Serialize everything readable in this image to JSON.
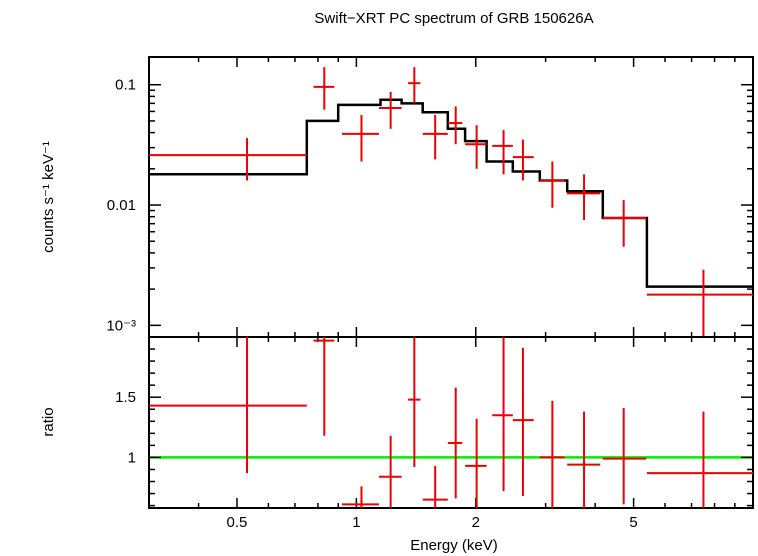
{
  "chart_data": [
    {
      "type": "scatter",
      "panel": "spectrum",
      "title": "Swift−XRT PC spectrum of GRB 150626A",
      "xlabel": "Energy (keV)",
      "ylabel": "counts s⁻¹ keV⁻¹",
      "xscale": "log",
      "yscale": "log",
      "xlim": [
        0.3,
        10.0
      ],
      "ylim": [
        0.0008,
        0.17
      ],
      "y_ticks": [
        {
          "value": 0.1,
          "label": "0.1"
        },
        {
          "value": 0.01,
          "label": "0.01"
        },
        {
          "value": 0.001,
          "label": "10⁻³"
        }
      ],
      "colors": {
        "data": "#ee0000",
        "model": "#000000"
      },
      "series": [
        {
          "name": "data",
          "points": [
            {
              "x": 0.53,
              "xlo": 0.3,
              "xhi": 0.75,
              "y": 0.026,
              "ylo": 0.016,
              "yhi": 0.036
            },
            {
              "x": 0.83,
              "xlo": 0.78,
              "xhi": 0.88,
              "y": 0.096,
              "ylo": 0.062,
              "yhi": 0.14
            },
            {
              "x": 1.03,
              "xlo": 0.92,
              "xhi": 1.14,
              "y": 0.039,
              "ylo": 0.023,
              "yhi": 0.056
            },
            {
              "x": 1.22,
              "xlo": 1.14,
              "xhi": 1.3,
              "y": 0.064,
              "ylo": 0.043,
              "yhi": 0.087
            },
            {
              "x": 1.4,
              "xlo": 1.35,
              "xhi": 1.45,
              "y": 0.103,
              "ylo": 0.07,
              "yhi": 0.14
            },
            {
              "x": 1.58,
              "xlo": 1.47,
              "xhi": 1.7,
              "y": 0.039,
              "ylo": 0.024,
              "yhi": 0.056
            },
            {
              "x": 1.78,
              "xlo": 1.7,
              "xhi": 1.85,
              "y": 0.048,
              "ylo": 0.032,
              "yhi": 0.066
            },
            {
              "x": 2.01,
              "xlo": 1.88,
              "xhi": 2.13,
              "y": 0.032,
              "ylo": 0.02,
              "yhi": 0.046
            },
            {
              "x": 2.35,
              "xlo": 2.2,
              "xhi": 2.48,
              "y": 0.031,
              "ylo": 0.018,
              "yhi": 0.042
            },
            {
              "x": 2.63,
              "xlo": 2.48,
              "xhi": 2.8,
              "y": 0.025,
              "ylo": 0.016,
              "yhi": 0.035
            },
            {
              "x": 3.12,
              "xlo": 2.9,
              "xhi": 3.35,
              "y": 0.016,
              "ylo": 0.0095,
              "yhi": 0.023
            },
            {
              "x": 3.75,
              "xlo": 3.4,
              "xhi": 4.12,
              "y": 0.0125,
              "ylo": 0.0075,
              "yhi": 0.018
            },
            {
              "x": 4.72,
              "xlo": 4.18,
              "xhi": 5.38,
              "y": 0.0078,
              "ylo": 0.0045,
              "yhi": 0.011
            },
            {
              "x": 7.5,
              "xlo": 5.4,
              "xhi": 10.0,
              "y": 0.0018,
              "ylo": 0.00078,
              "yhi": 0.0029
            }
          ]
        },
        {
          "name": "model",
          "style": "step",
          "steps": [
            {
              "xlo": 0.3,
              "xhi": 0.75,
              "y": 0.018
            },
            {
              "xlo": 0.75,
              "xhi": 0.9,
              "y": 0.05
            },
            {
              "xlo": 0.9,
              "xhi": 1.15,
              "y": 0.068
            },
            {
              "xlo": 1.15,
              "xhi": 1.3,
              "y": 0.075
            },
            {
              "xlo": 1.3,
              "xhi": 1.47,
              "y": 0.07
            },
            {
              "xlo": 1.47,
              "xhi": 1.7,
              "y": 0.059
            },
            {
              "xlo": 1.7,
              "xhi": 1.88,
              "y": 0.043
            },
            {
              "xlo": 1.88,
              "xhi": 2.13,
              "y": 0.034
            },
            {
              "xlo": 2.13,
              "xhi": 2.48,
              "y": 0.023
            },
            {
              "xlo": 2.48,
              "xhi": 2.9,
              "y": 0.019
            },
            {
              "xlo": 2.9,
              "xhi": 3.4,
              "y": 0.016
            },
            {
              "xlo": 3.4,
              "xhi": 4.18,
              "y": 0.013
            },
            {
              "xlo": 4.18,
              "xhi": 5.4,
              "y": 0.0078
            },
            {
              "xlo": 5.4,
              "xhi": 10.0,
              "y": 0.0021
            }
          ]
        }
      ]
    },
    {
      "type": "scatter",
      "panel": "ratio",
      "xlabel": "Energy (keV)",
      "ylabel": "ratio",
      "xscale": "log",
      "yscale": "linear",
      "xlim": [
        0.3,
        10.0
      ],
      "ylim": [
        0.58,
        2.0
      ],
      "x_ticks": [
        {
          "value": 0.5,
          "label": "0.5"
        },
        {
          "value": 1,
          "label": "1"
        },
        {
          "value": 2,
          "label": "2"
        },
        {
          "value": 5,
          "label": "5"
        }
      ],
      "y_ticks": [
        {
          "value": 1.0,
          "label": "1"
        },
        {
          "value": 1.5,
          "label": "1.5"
        }
      ],
      "reference_line": {
        "y": 1.0,
        "color": "#00ee00"
      },
      "colors": {
        "data": "#ee0000"
      },
      "series": [
        {
          "name": "ratio",
          "points": [
            {
              "x": 0.53,
              "xlo": 0.3,
              "xhi": 0.75,
              "y": 1.43,
              "ylo": 0.87,
              "yhi": 2.0
            },
            {
              "x": 0.83,
              "xlo": 0.78,
              "xhi": 0.88,
              "y": 1.97,
              "ylo": 1.18,
              "yhi": 2.0
            },
            {
              "x": 1.03,
              "xlo": 0.92,
              "xhi": 1.14,
              "y": 0.61,
              "ylo": 0.58,
              "yhi": 0.76
            },
            {
              "x": 1.22,
              "xlo": 1.14,
              "xhi": 1.3,
              "y": 0.84,
              "ylo": 0.58,
              "yhi": 1.18
            },
            {
              "x": 1.4,
              "xlo": 1.35,
              "xhi": 1.45,
              "y": 1.48,
              "ylo": 0.92,
              "yhi": 2.0
            },
            {
              "x": 1.58,
              "xlo": 1.47,
              "xhi": 1.7,
              "y": 0.65,
              "ylo": 0.58,
              "yhi": 0.93
            },
            {
              "x": 1.78,
              "xlo": 1.7,
              "xhi": 1.85,
              "y": 1.12,
              "ylo": 0.66,
              "yhi": 1.58
            },
            {
              "x": 2.01,
              "xlo": 1.88,
              "xhi": 2.13,
              "y": 0.93,
              "ylo": 0.58,
              "yhi": 1.32
            },
            {
              "x": 2.35,
              "xlo": 2.2,
              "xhi": 2.48,
              "y": 1.35,
              "ylo": 0.72,
              "yhi": 2.0
            },
            {
              "x": 2.63,
              "xlo": 2.48,
              "xhi": 2.8,
              "y": 1.31,
              "ylo": 0.68,
              "yhi": 1.91
            },
            {
              "x": 3.12,
              "xlo": 2.9,
              "xhi": 3.35,
              "y": 1.0,
              "ylo": 0.58,
              "yhi": 1.47
            },
            {
              "x": 3.75,
              "xlo": 3.4,
              "xhi": 4.12,
              "y": 0.94,
              "ylo": 0.58,
              "yhi": 1.38
            },
            {
              "x": 4.72,
              "xlo": 4.18,
              "xhi": 5.38,
              "y": 0.99,
              "ylo": 0.61,
              "yhi": 1.41
            },
            {
              "x": 7.5,
              "xlo": 5.4,
              "xhi": 10.0,
              "y": 0.87,
              "ylo": 0.58,
              "yhi": 1.38
            }
          ]
        }
      ]
    }
  ]
}
